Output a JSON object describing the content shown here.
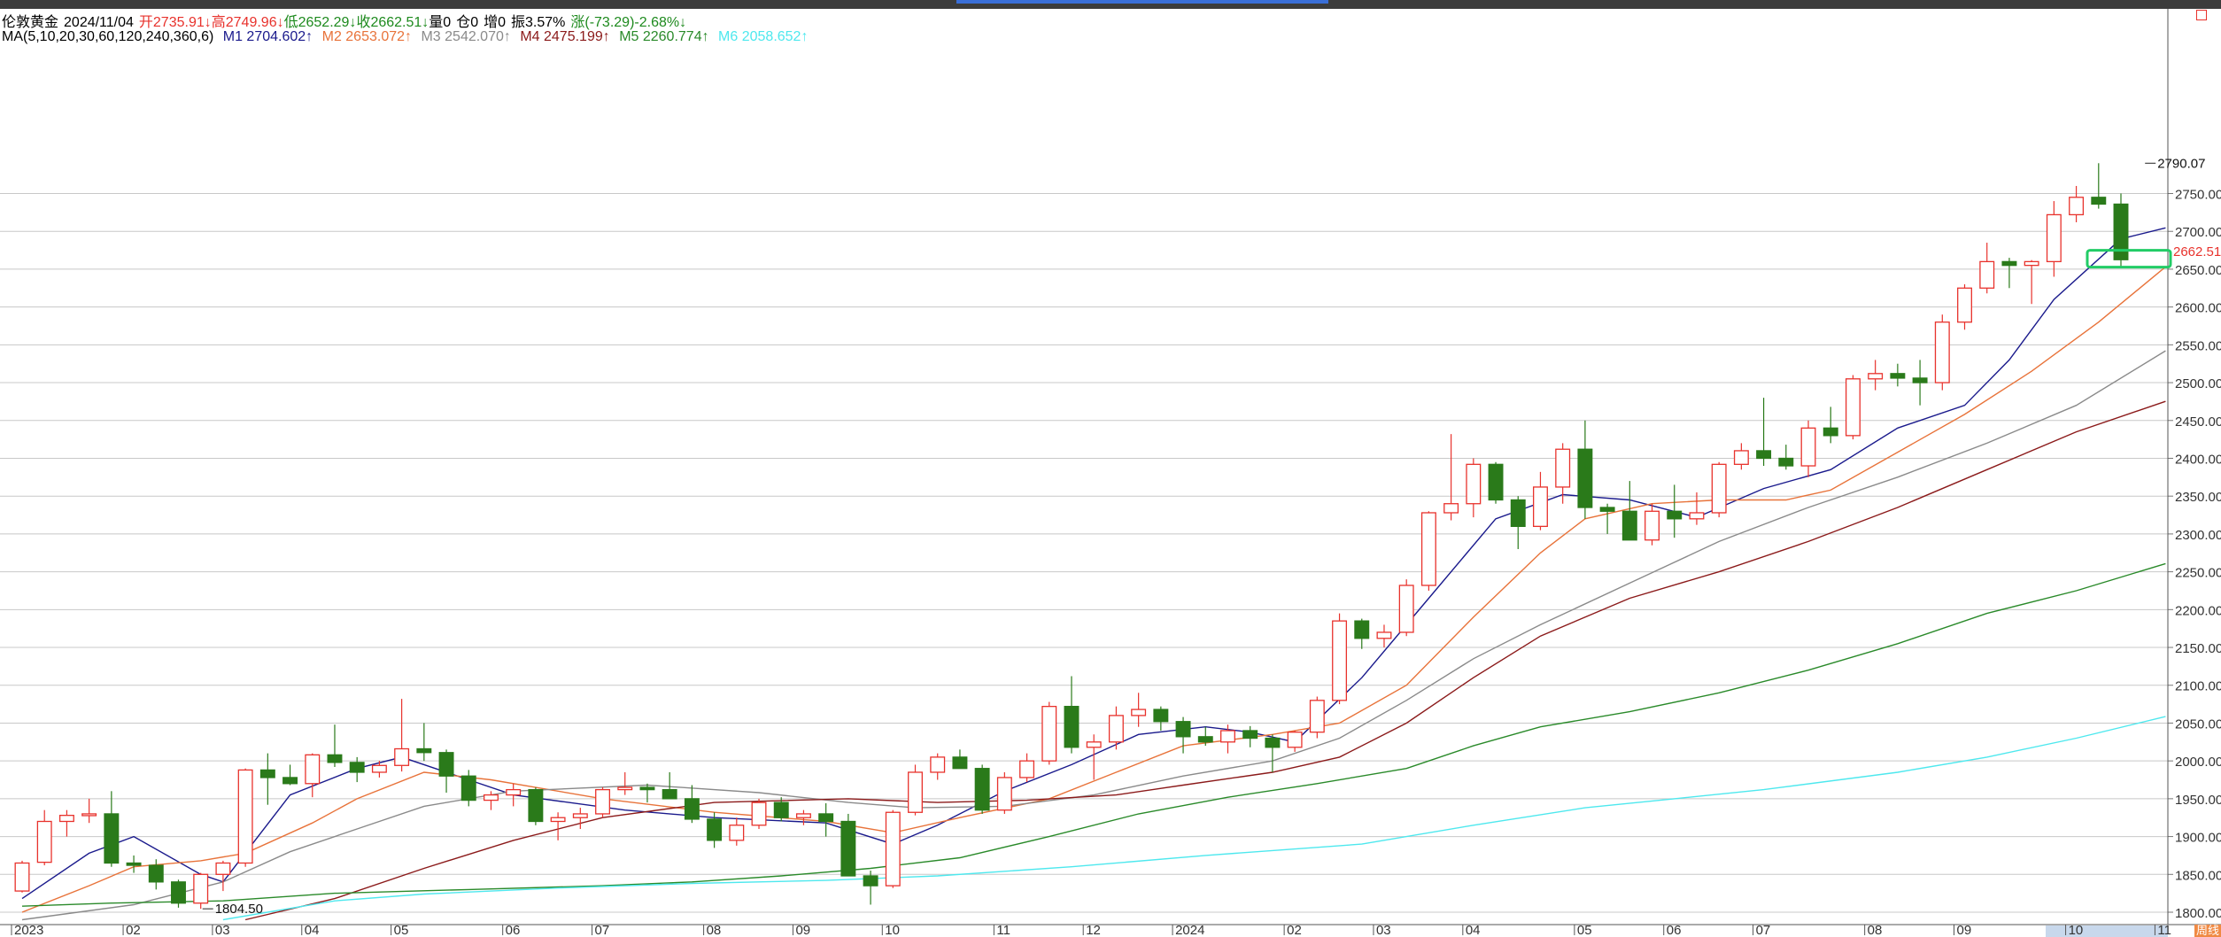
{
  "header": {
    "instrument": "伦敦黄金",
    "date": "2024/11/04",
    "open": "开2735.91↓",
    "high": "高2749.96↓",
    "low": "低2652.29↓",
    "close": "收2662.51↓",
    "volume": "量0",
    "position": "仓0",
    "increase": "增0",
    "amplitude": "振3.57%",
    "change": "涨(-73.29)-2.68%↓"
  },
  "ma_legend": {
    "label": "MA(5,10,20,30,60,120,240,360,6)",
    "items": [
      {
        "text": "M1 2704.602↑",
        "color": "#1a1a8c"
      },
      {
        "text": "M2 2653.072↑",
        "color": "#e8733a"
      },
      {
        "text": "M3 2542.070↑",
        "color": "#8a8a8a"
      },
      {
        "text": "M4 2475.199↑",
        "color": "#8b1a1a"
      },
      {
        "text": "M5 2260.774↑",
        "color": "#2a8a2a"
      },
      {
        "text": "M6 2058.652↑",
        "color": "#4ee8ee"
      }
    ]
  },
  "colors": {
    "up": "#e8322c",
    "down": "#2a7a1a",
    "grid": "#c8c8c8",
    "highlight": "#22cc66"
  },
  "period_badge": "周线",
  "chart_data": {
    "type": "candlestick",
    "interval": "weekly",
    "ylim": [
      1790,
      2810
    ],
    "y_ticks": [
      "1800.00",
      "1850.00",
      "1900.00",
      "1950.00",
      "2000.00",
      "2050.00",
      "2100.00",
      "2150.00",
      "2200.00",
      "2250.00",
      "2300.00",
      "2350.00",
      "2400.00",
      "2450.00",
      "2500.00",
      "2550.00",
      "2600.00",
      "2650.00",
      "2700.00",
      "2750.00"
    ],
    "x_labels": [
      "2023",
      "02",
      "03",
      "04",
      "05",
      "06",
      "07",
      "08",
      "09",
      "10",
      "11",
      "12",
      "2024",
      "02",
      "03",
      "04",
      "05",
      "06",
      "07",
      "08",
      "09",
      "10",
      "11"
    ],
    "label_bar_index": [
      0,
      5,
      9,
      13,
      17,
      22,
      26,
      31,
      35,
      39,
      44,
      48,
      52,
      57,
      61,
      65,
      70,
      74,
      78,
      83,
      87,
      92,
      96
    ],
    "ohlc": [
      [
        1828,
        1868,
        1826,
        1865
      ],
      [
        1866,
        1935,
        1862,
        1920
      ],
      [
        1920,
        1935,
        1900,
        1928
      ],
      [
        1928,
        1950,
        1918,
        1930
      ],
      [
        1930,
        1960,
        1860,
        1865
      ],
      [
        1865,
        1875,
        1852,
        1862
      ],
      [
        1862,
        1870,
        1830,
        1840
      ],
      [
        1840,
        1843,
        1806,
        1812
      ],
      [
        1812,
        1852,
        1804.5,
        1850
      ],
      [
        1850,
        1868,
        1828,
        1865
      ],
      [
        1865,
        1990,
        1860,
        1988
      ],
      [
        1988,
        2010,
        1942,
        1978
      ],
      [
        1978,
        1995,
        1968,
        1970
      ],
      [
        1970,
        2010,
        1952,
        2008
      ],
      [
        2008,
        2048,
        1992,
        1998
      ],
      [
        1998,
        2005,
        1972,
        1985
      ],
      [
        1985,
        2000,
        1978,
        1994
      ],
      [
        1994,
        2082,
        1986,
        2016
      ],
      [
        2016,
        2050,
        2000,
        2011
      ],
      [
        2011,
        2015,
        1958,
        1980
      ],
      [
        1980,
        1988,
        1940,
        1948
      ],
      [
        1948,
        1960,
        1935,
        1955
      ],
      [
        1955,
        1970,
        1940,
        1962
      ],
      [
        1962,
        1965,
        1915,
        1920
      ],
      [
        1920,
        1932,
        1895,
        1925
      ],
      [
        1925,
        1938,
        1910,
        1930
      ],
      [
        1930,
        1965,
        1925,
        1962
      ],
      [
        1962,
        1985,
        1955,
        1965
      ],
      [
        1965,
        1970,
        1945,
        1962
      ],
      [
        1962,
        1985,
        1950,
        1950
      ],
      [
        1950,
        1968,
        1918,
        1923
      ],
      [
        1923,
        1932,
        1885,
        1895
      ],
      [
        1895,
        1925,
        1888,
        1915
      ],
      [
        1915,
        1950,
        1910,
        1945
      ],
      [
        1945,
        1952,
        1920,
        1925
      ],
      [
        1925,
        1935,
        1915,
        1930
      ],
      [
        1930,
        1944,
        1900,
        1920
      ],
      [
        1920,
        1930,
        1848,
        1848
      ],
      [
        1848,
        1855,
        1810,
        1835
      ],
      [
        1835,
        1935,
        1832,
        1932
      ],
      [
        1932,
        1995,
        1928,
        1985
      ],
      [
        1985,
        2010,
        1975,
        2005
      ],
      [
        2005,
        2015,
        1995,
        1990
      ],
      [
        1990,
        1995,
        1930,
        1935
      ],
      [
        1935,
        1985,
        1930,
        1978
      ],
      [
        1978,
        2010,
        1972,
        2000
      ],
      [
        2000,
        2078,
        1995,
        2072
      ],
      [
        2072,
        2112,
        2010,
        2018
      ],
      [
        2018,
        2035,
        1975,
        2025
      ],
      [
        2025,
        2072,
        2015,
        2060
      ],
      [
        2060,
        2090,
        2045,
        2068
      ],
      [
        2068,
        2072,
        2040,
        2052
      ],
      [
        2052,
        2058,
        2010,
        2032
      ],
      [
        2032,
        2045,
        2020,
        2025
      ],
      [
        2025,
        2048,
        2010,
        2040
      ],
      [
        2040,
        2046,
        2018,
        2030
      ],
      [
        2030,
        2035,
        1985,
        2018
      ],
      [
        2018,
        2040,
        2012,
        2038
      ],
      [
        2038,
        2085,
        2030,
        2080
      ],
      [
        2080,
        2195,
        2075,
        2185
      ],
      [
        2185,
        2188,
        2148,
        2162
      ],
      [
        2162,
        2180,
        2150,
        2170
      ],
      [
        2170,
        2240,
        2165,
        2232
      ],
      [
        2232,
        2330,
        2225,
        2328
      ],
      [
        2328,
        2432,
        2318,
        2340
      ],
      [
        2340,
        2400,
        2322,
        2392
      ],
      [
        2392,
        2395,
        2340,
        2345
      ],
      [
        2345,
        2350,
        2280,
        2310
      ],
      [
        2310,
        2382,
        2305,
        2362
      ],
      [
        2362,
        2420,
        2340,
        2412
      ],
      [
        2412,
        2450,
        2320,
        2335
      ],
      [
        2335,
        2340,
        2300,
        2330
      ],
      [
        2330,
        2370,
        2296,
        2292
      ],
      [
        2292,
        2340,
        2285,
        2330
      ],
      [
        2330,
        2365,
        2295,
        2320
      ],
      [
        2320,
        2355,
        2312,
        2328
      ],
      [
        2328,
        2395,
        2322,
        2392
      ],
      [
        2392,
        2420,
        2385,
        2410
      ],
      [
        2410,
        2480,
        2390,
        2400
      ],
      [
        2400,
        2418,
        2385,
        2390
      ],
      [
        2390,
        2450,
        2375,
        2440
      ],
      [
        2440,
        2468,
        2420,
        2430
      ],
      [
        2430,
        2510,
        2425,
        2505
      ],
      [
        2505,
        2530,
        2490,
        2512
      ],
      [
        2512,
        2525,
        2495,
        2506
      ],
      [
        2506,
        2530,
        2470,
        2500
      ],
      [
        2500,
        2590,
        2490,
        2580
      ],
      [
        2580,
        2630,
        2570,
        2625
      ],
      [
        2625,
        2685,
        2618,
        2660
      ],
      [
        2660,
        2665,
        2625,
        2655
      ],
      [
        2655,
        2662,
        2604,
        2660
      ],
      [
        2660,
        2740,
        2640,
        2722
      ],
      [
        2722,
        2760,
        2712,
        2745
      ],
      [
        2745,
        2790.07,
        2730,
        2736
      ],
      [
        2736,
        2750,
        2652,
        2662.51
      ]
    ],
    "series": [
      {
        "name": "M1",
        "color": "#1a1a8c",
        "values": [
          [
            0,
            1818
          ],
          [
            3,
            1878
          ],
          [
            5,
            1900
          ],
          [
            8,
            1850
          ],
          [
            9,
            1840
          ],
          [
            12,
            1955
          ],
          [
            15,
            1990
          ],
          [
            17,
            2005
          ],
          [
            22,
            1955
          ],
          [
            27,
            1935
          ],
          [
            31,
            1925
          ],
          [
            36,
            1918
          ],
          [
            39,
            1890
          ],
          [
            41,
            1915
          ],
          [
            44,
            1960
          ],
          [
            47,
            1995
          ],
          [
            50,
            2035
          ],
          [
            53,
            2045
          ],
          [
            55,
            2038
          ],
          [
            57,
            2025
          ],
          [
            60,
            2110
          ],
          [
            63,
            2215
          ],
          [
            66,
            2320
          ],
          [
            69,
            2352
          ],
          [
            72,
            2345
          ],
          [
            75,
            2322
          ],
          [
            78,
            2360
          ],
          [
            81,
            2385
          ],
          [
            84,
            2440
          ],
          [
            87,
            2470
          ],
          [
            89,
            2530
          ],
          [
            91,
            2610
          ],
          [
            94,
            2690
          ],
          [
            96,
            2704.6
          ]
        ]
      },
      {
        "name": "M2",
        "color": "#e8733a",
        "values": [
          [
            0,
            1800
          ],
          [
            3,
            1835
          ],
          [
            5,
            1860
          ],
          [
            8,
            1868
          ],
          [
            10,
            1878
          ],
          [
            13,
            1918
          ],
          [
            15,
            1950
          ],
          [
            18,
            1985
          ],
          [
            21,
            1975
          ],
          [
            26,
            1950
          ],
          [
            31,
            1932
          ],
          [
            36,
            1920
          ],
          [
            39,
            1905
          ],
          [
            42,
            1925
          ],
          [
            46,
            1950
          ],
          [
            49,
            1985
          ],
          [
            52,
            2020
          ],
          [
            56,
            2035
          ],
          [
            59,
            2050
          ],
          [
            62,
            2100
          ],
          [
            65,
            2190
          ],
          [
            68,
            2275
          ],
          [
            70,
            2320
          ],
          [
            73,
            2340
          ],
          [
            76,
            2345
          ],
          [
            79,
            2345
          ],
          [
            81,
            2358
          ],
          [
            84,
            2408
          ],
          [
            87,
            2458
          ],
          [
            90,
            2515
          ],
          [
            93,
            2580
          ],
          [
            96,
            2653.07
          ]
        ]
      },
      {
        "name": "M3",
        "color": "#8a8a8a",
        "values": [
          [
            0,
            1790
          ],
          [
            5,
            1810
          ],
          [
            9,
            1840
          ],
          [
            12,
            1880
          ],
          [
            15,
            1910
          ],
          [
            18,
            1940
          ],
          [
            22,
            1960
          ],
          [
            28,
            1968
          ],
          [
            33,
            1958
          ],
          [
            37,
            1945
          ],
          [
            40,
            1938
          ],
          [
            44,
            1940
          ],
          [
            48,
            1955
          ],
          [
            52,
            1980
          ],
          [
            56,
            2000
          ],
          [
            59,
            2030
          ],
          [
            62,
            2080
          ],
          [
            65,
            2135
          ],
          [
            68,
            2180
          ],
          [
            72,
            2235
          ],
          [
            76,
            2290
          ],
          [
            80,
            2335
          ],
          [
            84,
            2375
          ],
          [
            88,
            2420
          ],
          [
            92,
            2470
          ],
          [
            96,
            2542.07
          ]
        ]
      },
      {
        "name": "M4",
        "color": "#8b1a1a",
        "values": [
          [
            10,
            1790
          ],
          [
            14,
            1818
          ],
          [
            18,
            1858
          ],
          [
            22,
            1895
          ],
          [
            26,
            1925
          ],
          [
            31,
            1945
          ],
          [
            37,
            1950
          ],
          [
            41,
            1945
          ],
          [
            45,
            1948
          ],
          [
            49,
            1955
          ],
          [
            52,
            1968
          ],
          [
            56,
            1985
          ],
          [
            59,
            2005
          ],
          [
            62,
            2050
          ],
          [
            65,
            2110
          ],
          [
            68,
            2165
          ],
          [
            72,
            2215
          ],
          [
            76,
            2250
          ],
          [
            80,
            2290
          ],
          [
            84,
            2335
          ],
          [
            88,
            2385
          ],
          [
            92,
            2435
          ],
          [
            96,
            2475.2
          ]
        ]
      },
      {
        "name": "M5",
        "color": "#2a8a2a",
        "values": [
          [
            0,
            1808
          ],
          [
            4,
            1812
          ],
          [
            9,
            1815
          ],
          [
            14,
            1825
          ],
          [
            20,
            1830
          ],
          [
            26,
            1835
          ],
          [
            30,
            1840
          ],
          [
            34,
            1848
          ],
          [
            38,
            1858
          ],
          [
            42,
            1872
          ],
          [
            46,
            1900
          ],
          [
            50,
            1930
          ],
          [
            54,
            1952
          ],
          [
            58,
            1970
          ],
          [
            62,
            1990
          ],
          [
            65,
            2020
          ],
          [
            68,
            2045
          ],
          [
            72,
            2065
          ],
          [
            76,
            2090
          ],
          [
            80,
            2120
          ],
          [
            84,
            2155
          ],
          [
            88,
            2195
          ],
          [
            92,
            2225
          ],
          [
            96,
            2260.77
          ]
        ]
      },
      {
        "name": "M6",
        "color": "#4ee8ee",
        "values": [
          [
            9,
            1790
          ],
          [
            14,
            1815
          ],
          [
            18,
            1824
          ],
          [
            24,
            1832
          ],
          [
            30,
            1838
          ],
          [
            36,
            1842
          ],
          [
            41,
            1848
          ],
          [
            47,
            1860
          ],
          [
            53,
            1875
          ],
          [
            60,
            1890
          ],
          [
            65,
            1915
          ],
          [
            70,
            1938
          ],
          [
            74,
            1950
          ],
          [
            78,
            1962
          ],
          [
            84,
            1985
          ],
          [
            88,
            2005
          ],
          [
            92,
            2030
          ],
          [
            96,
            2058.65
          ]
        ]
      }
    ],
    "annotations": [
      {
        "text": "2790.07",
        "bar": 95,
        "value": 2790.07
      },
      {
        "text": "1804.50",
        "bar": 8,
        "value": 1804.5
      }
    ],
    "last_price_label": "2662.51"
  }
}
